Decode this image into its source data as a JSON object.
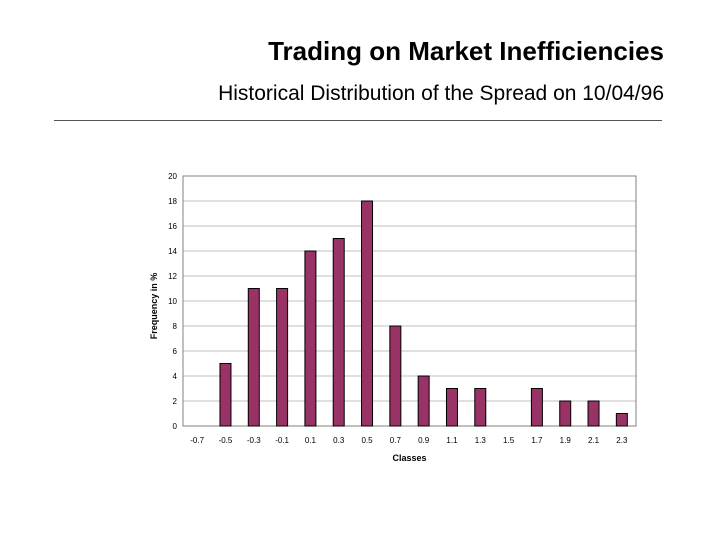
{
  "slide": {
    "title": "Trading on Market Inefficiencies",
    "subtitle": "Historical Distribution of the Spread on 10/04/96"
  },
  "colors": {
    "bar_fill": "#993366",
    "bar_stroke": "#000000",
    "gridline": "#c0c0c0",
    "plot_border": "#808080",
    "text": "#000000"
  },
  "chart_data": {
    "type": "bar",
    "title": "",
    "xlabel": "Classes",
    "ylabel": "Frequency in %",
    "categories": [
      "-0.7",
      "-0.5",
      "-0.3",
      "-0.1",
      "0.1",
      "0.3",
      "0.5",
      "0.7",
      "0.9",
      "1.1",
      "1.3",
      "1.5",
      "1.7",
      "1.9",
      "2.1",
      "2.3"
    ],
    "values": [
      0,
      5,
      11,
      11,
      14,
      15,
      18,
      8,
      4,
      3,
      3,
      0,
      3,
      2,
      2,
      1
    ],
    "ylim": [
      0,
      20
    ],
    "yticks": [
      "0",
      "2",
      "4",
      "6",
      "8",
      "10",
      "12",
      "14",
      "16",
      "18",
      "20"
    ],
    "grid": true,
    "legend": "none"
  }
}
